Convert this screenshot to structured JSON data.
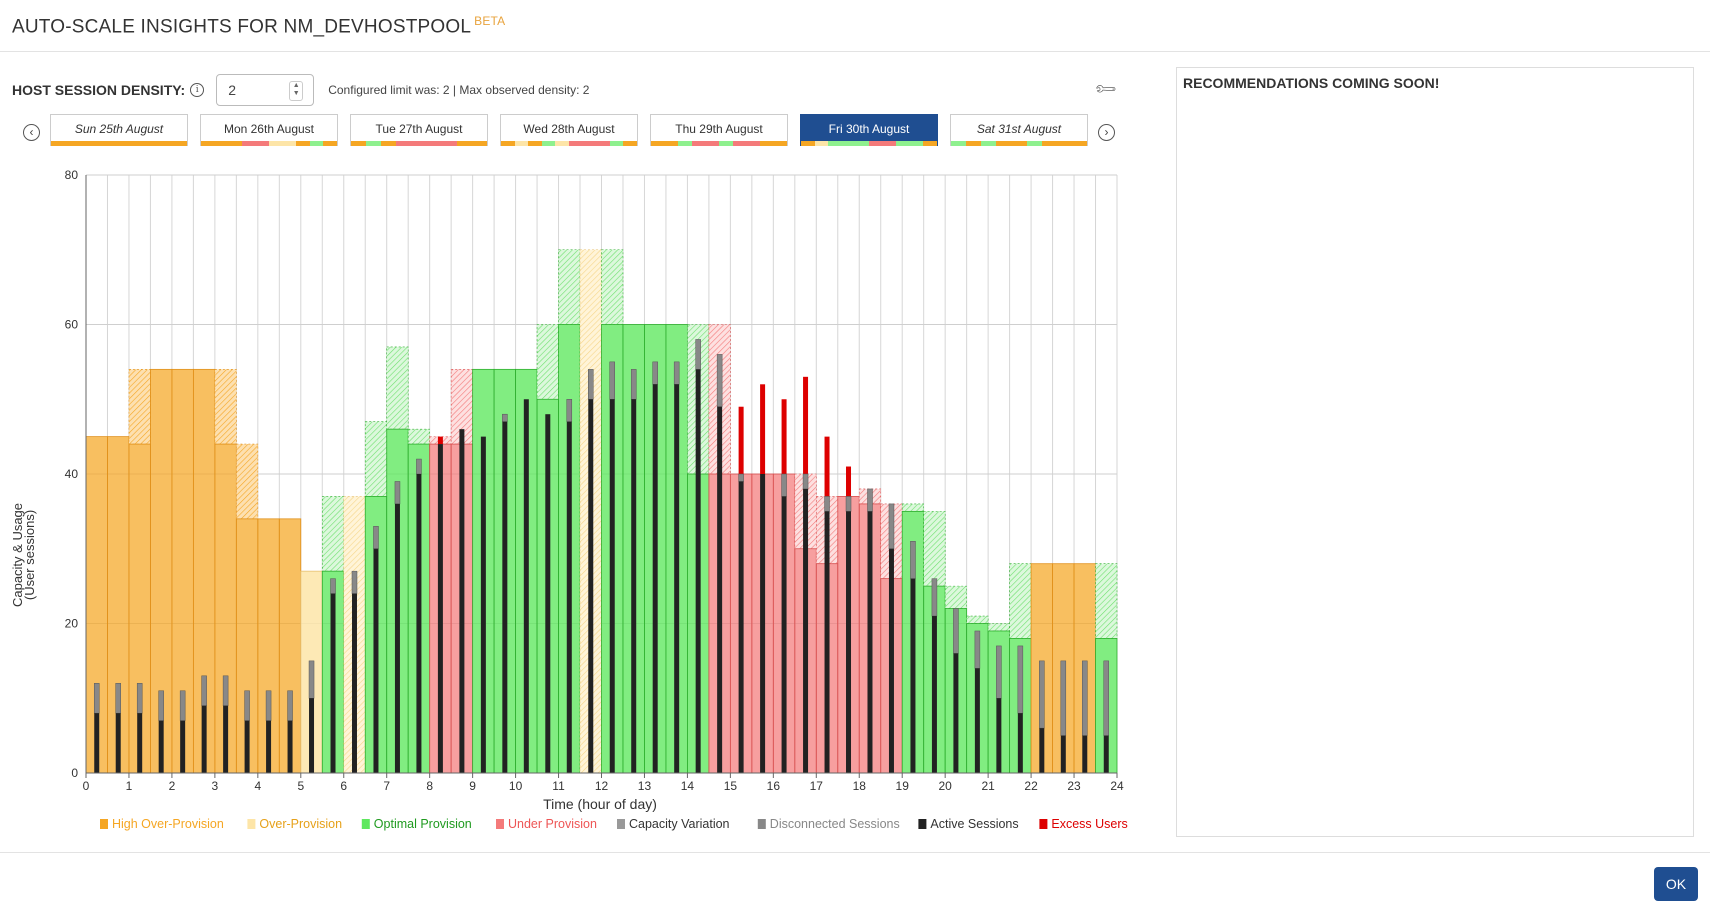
{
  "dialog": {
    "title": "AUTO-SCALE INSIGHTS FOR NM_DEVHOSTPOOL",
    "badge": "BETA"
  },
  "density": {
    "label": "HOST SESSION DENSITY:",
    "info_icon": "info-circle-icon",
    "value": "2",
    "info_text": "Configured limit was: 2 | Max observed density: 2",
    "settings_icon": "wrench-icon"
  },
  "day_nav": {
    "prev_icon": "chevron-left-circle-icon",
    "next_icon": "chevron-right-circle-icon",
    "prev_symbol": "‹",
    "next_symbol": "›",
    "days": [
      {
        "label": "Sun 25th August",
        "italic": true,
        "active": false,
        "strip": [
          "o"
        ]
      },
      {
        "label": "Mon 26th August",
        "italic": false,
        "active": false,
        "strip": [
          "o",
          "o",
          "o",
          "r",
          "r",
          "y",
          "y",
          "o",
          "g",
          "o"
        ]
      },
      {
        "label": "Tue 27th August",
        "italic": false,
        "active": false,
        "strip": [
          "o",
          "g",
          "o",
          "r",
          "r",
          "r",
          "r",
          "o",
          "o"
        ]
      },
      {
        "label": "Wed 28th August",
        "italic": false,
        "active": false,
        "strip": [
          "o",
          "y",
          "o",
          "g",
          "y",
          "r",
          "r",
          "r",
          "g",
          "o"
        ]
      },
      {
        "label": "Thu 29th August",
        "italic": false,
        "active": false,
        "strip": [
          "o",
          "o",
          "g",
          "r",
          "r",
          "g",
          "r",
          "r",
          "o",
          "o"
        ]
      },
      {
        "label": "Fri 30th August",
        "italic": false,
        "active": true,
        "strip": [
          "o",
          "y",
          "g",
          "g",
          "g",
          "r",
          "r",
          "g",
          "g",
          "o"
        ]
      },
      {
        "label": "Sat 31st August",
        "italic": true,
        "active": false,
        "strip": [
          "g",
          "o",
          "g",
          "o",
          "o",
          "g",
          "o",
          "o",
          "o"
        ]
      }
    ]
  },
  "colors": {
    "high_over": "#f5a623",
    "over": "#fde5a8",
    "optimal": "#5ee85e",
    "under": "#f47a7a",
    "disconnected": "#888888",
    "active": "#222222",
    "excess": "#dd0000",
    "accent": "#1f4e91"
  },
  "chart_data": {
    "type": "bar",
    "xlabel": "Time (hour of day)",
    "ylabel": "Capacity & Usage",
    "ylabel2": "(User sessions)",
    "xlim": [
      0,
      24
    ],
    "ylim": [
      0,
      80
    ],
    "x_ticks": [
      0,
      1,
      2,
      3,
      4,
      5,
      6,
      7,
      8,
      9,
      10,
      11,
      12,
      13,
      14,
      15,
      16,
      17,
      18,
      19,
      20,
      21,
      22,
      23,
      24
    ],
    "y_ticks": [
      0,
      20,
      40,
      60,
      80
    ],
    "grid": true,
    "capacity_series": {
      "name": "Capacity",
      "x": [
        0,
        0.5,
        1,
        1.5,
        2,
        2.5,
        3,
        3.5,
        4,
        4.5,
        5,
        5.5,
        6,
        6.5,
        7,
        7.5,
        8,
        8.5,
        9,
        9.5,
        10,
        10.5,
        11,
        11.5,
        12,
        12.5,
        13,
        13.5,
        14,
        14.5,
        15,
        15.5,
        16,
        16.5,
        17,
        17.5,
        18,
        18.5,
        19,
        19.5,
        20,
        20.5,
        21,
        21.5,
        22,
        22.5,
        23,
        23.5
      ],
      "min": [
        45,
        45,
        44,
        54,
        54,
        54,
        44,
        34,
        34,
        34,
        27,
        27,
        0,
        37,
        46,
        44,
        44,
        44,
        54,
        54,
        54,
        50,
        60,
        0,
        60,
        60,
        60,
        60,
        40,
        40,
        40,
        40,
        40,
        30,
        28,
        37,
        36,
        26,
        35,
        25,
        22,
        20,
        19,
        18,
        28,
        28,
        28,
        18
      ],
      "max": [
        45,
        45,
        54,
        54,
        54,
        54,
        54,
        44,
        34,
        34,
        27,
        37,
        37,
        47,
        57,
        46,
        45,
        54,
        54,
        54,
        54,
        60,
        70,
        70,
        70,
        60,
        60,
        60,
        60,
        60,
        40,
        40,
        40,
        40,
        37,
        37,
        38,
        36,
        36,
        35,
        25,
        21,
        20,
        28,
        28,
        28,
        28,
        28
      ],
      "status": [
        "H",
        "H",
        "H",
        "H",
        "H",
        "H",
        "H",
        "H",
        "H",
        "H",
        "O",
        "G",
        "O",
        "G",
        "G",
        "G",
        "U",
        "U",
        "G",
        "G",
        "G",
        "G",
        "G",
        "O",
        "G",
        "G",
        "G",
        "G",
        "G",
        "U",
        "U",
        "U",
        "U",
        "U",
        "U",
        "U",
        "U",
        "U",
        "G",
        "G",
        "G",
        "G",
        "G",
        "G",
        "H",
        "H",
        "H",
        "G"
      ]
    },
    "active_sessions": [
      8,
      8,
      8,
      7,
      7,
      9,
      9,
      7,
      7,
      7,
      10,
      24,
      24,
      30,
      36,
      40,
      44,
      46,
      45,
      47,
      50,
      48,
      47,
      50,
      50,
      50,
      52,
      52,
      54,
      49,
      39,
      40,
      37,
      38,
      35,
      35,
      35,
      30,
      26,
      21,
      16,
      14,
      10,
      8,
      6,
      5,
      5,
      5
    ],
    "total_sessions": [
      12,
      12,
      12,
      11,
      11,
      13,
      13,
      11,
      11,
      11,
      15,
      26,
      27,
      33,
      39,
      42,
      44,
      46,
      45,
      48,
      50,
      48,
      50,
      54,
      55,
      54,
      55,
      55,
      58,
      56,
      40,
      40,
      40,
      40,
      37,
      37,
      38,
      36,
      31,
      26,
      22,
      19,
      17,
      17,
      15,
      15,
      15,
      15
    ],
    "excess_top": [
      0,
      0,
      0,
      0,
      0,
      0,
      0,
      0,
      0,
      0,
      0,
      0,
      0,
      0,
      0,
      0,
      45,
      0,
      0,
      0,
      0,
      0,
      0,
      0,
      0,
      0,
      0,
      0,
      0,
      0,
      49,
      52,
      50,
      53,
      45,
      41,
      38,
      0,
      0,
      0,
      0,
      0,
      0,
      0,
      0,
      0,
      0,
      0
    ],
    "legend": [
      {
        "label": "High Over-Provision",
        "color": "#f5a623",
        "text_color": "#f5a623"
      },
      {
        "label": "Over-Provision",
        "color": "#fde5a8",
        "text_color": "#e6a11a"
      },
      {
        "label": "Optimal Provision",
        "color": "#5ee85e",
        "text_color": "#1f9a1f"
      },
      {
        "label": "Under Provision",
        "color": "#f47a7a",
        "text_color": "#ee5555"
      },
      {
        "label": "Capacity Variation",
        "color": "#999999",
        "text_color": "#333333"
      },
      {
        "label": "Disconnected Sessions",
        "color": "#888888",
        "text_color": "#888888"
      },
      {
        "label": "Active Sessions",
        "color": "#222222",
        "text_color": "#333333"
      },
      {
        "label": "Excess Users",
        "color": "#dd0000",
        "text_color": "#dd0000"
      }
    ]
  },
  "recommendations": {
    "title": "RECOMMENDATIONS COMING SOON!"
  },
  "footer": {
    "ok_label": "OK"
  }
}
